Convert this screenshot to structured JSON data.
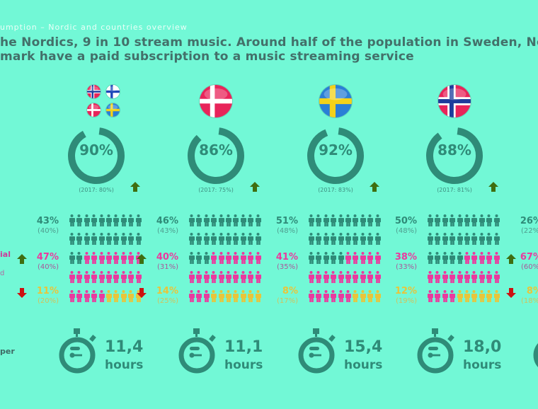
{
  "header": {
    "subtitle": "umption – Nordic and countries overview",
    "headline_line1": "he Nordics, 9 in 10 stream music. Around half of the population in Sweden, Nor",
    "headline_line2": "mark have a paid subscription to a music streaming service"
  },
  "left_labels": {
    "row2": "ial",
    "row2b": "d",
    "time": "per"
  },
  "colors": {
    "background": "#72f8d6",
    "teal": "#2f8b78",
    "pink": "#ea3a9e",
    "yellow": "#e9c53a",
    "arrow_up": "#3f6e10",
    "arrow_down": "#cc1111"
  },
  "columns": [
    {
      "flags": [
        "norway",
        "finland",
        "denmark",
        "sweden"
      ],
      "stream_pct": 90,
      "stream_label": "90%",
      "prev_year": "(2017: 80%)",
      "trend": "up",
      "rows": [
        {
          "pct": "43%",
          "prev": "(40%)",
          "trend": ""
        },
        {
          "pct": "47%",
          "prev": "(40%)",
          "trend": "up"
        },
        {
          "pct": "11%",
          "prev": "(20%)",
          "trend": "down"
        }
      ],
      "people": {
        "teal": 22,
        "pink": 23,
        "yellow": 5
      },
      "hours": "11,4",
      "hours_unit": "hours"
    },
    {
      "flags": [
        "denmark"
      ],
      "stream_pct": 86,
      "stream_label": "86%",
      "prev_year": "(2017: 75%)",
      "trend": "up",
      "rows": [
        {
          "pct": "46%",
          "prev": "(43%)",
          "trend": ""
        },
        {
          "pct": "40%",
          "prev": "(31%)",
          "trend": "up"
        },
        {
          "pct": "14%",
          "prev": "(25%)",
          "trend": "down"
        }
      ],
      "people": {
        "teal": 23,
        "pink": 20,
        "yellow": 7
      },
      "hours": "11,1",
      "hours_unit": "hours"
    },
    {
      "flags": [
        "sweden"
      ],
      "stream_pct": 92,
      "stream_label": "92%",
      "prev_year": "(2017: 83%)",
      "trend": "up",
      "rows": [
        {
          "pct": "51%",
          "prev": "(48%)",
          "trend": ""
        },
        {
          "pct": "41%",
          "prev": "(35%)",
          "trend": ""
        },
        {
          "pct": "8%",
          "prev": "(17%)",
          "trend": ""
        }
      ],
      "people": {
        "teal": 25,
        "pink": 21,
        "yellow": 4
      },
      "hours": "15,4",
      "hours_unit": "hours"
    },
    {
      "flags": [
        "norway"
      ],
      "stream_pct": 88,
      "stream_label": "88%",
      "prev_year": "(2017: 81%)",
      "trend": "up",
      "rows": [
        {
          "pct": "50%",
          "prev": "(48%)",
          "trend": ""
        },
        {
          "pct": "38%",
          "prev": "(33%)",
          "trend": ""
        },
        {
          "pct": "12%",
          "prev": "(19%)",
          "trend": ""
        }
      ],
      "people": {
        "teal": 25,
        "pink": 19,
        "yellow": 6
      },
      "hours": "18,0",
      "hours_unit": "hours"
    },
    {
      "rows": [
        {
          "pct": "26%",
          "prev": "(22%)",
          "trend": ""
        },
        {
          "pct": "67%",
          "prev": "(60%)",
          "trend": "up"
        },
        {
          "pct": "8%",
          "prev": "(18%)",
          "trend": "down"
        }
      ]
    }
  ]
}
